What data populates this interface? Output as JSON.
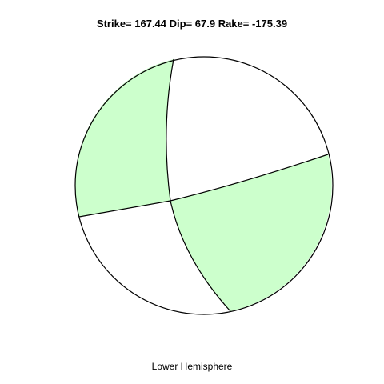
{
  "plot": {
    "title": "Strike= 167.44 Dip= 67.9 Rake= -175.39",
    "subtitle": "Lower Hemisphere"
  },
  "focal_mechanism": {
    "strike": 167.44,
    "dip": 67.9,
    "rake": -175.39,
    "projection": "Lower Hemisphere"
  },
  "colors": {
    "compression_fill": "#ccffcc",
    "dilatation_fill": "#ffffff",
    "outline": "#000000"
  }
}
